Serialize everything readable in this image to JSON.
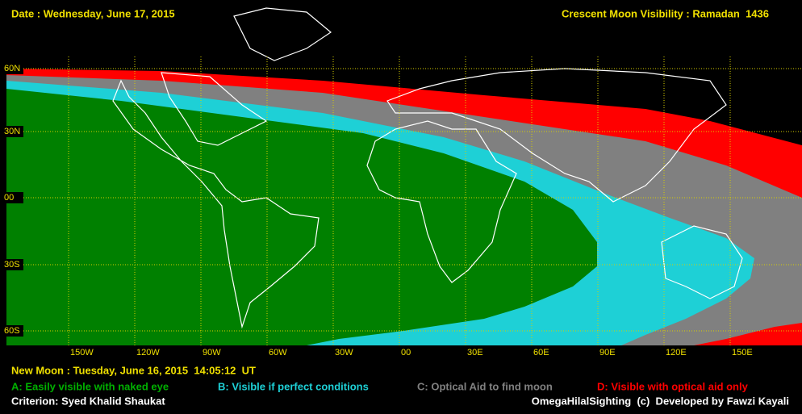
{
  "header": {
    "date": "Date : Wednesday, June 17, 2015",
    "title": "Crescent Moon Visibility : Ramadan  1436"
  },
  "grid": {
    "lat_labels": [
      "60N",
      "30N",
      "00",
      "30S",
      "60S"
    ],
    "lon_labels": [
      "150W",
      "120W",
      "90W",
      "60W",
      "30W",
      "00",
      "30E",
      "60E",
      "90E",
      "120E",
      "150E"
    ]
  },
  "new_moon": "New Moon : Tuesday, June 16, 2015  14:05:12  UT",
  "legend": [
    {
      "label": "A: Easily visible with naked eye",
      "color": "#008000"
    },
    {
      "label": "B: Visible if perfect conditions",
      "color": "#1ed0d6"
    },
    {
      "label": "C: Optical Aid to find moon",
      "color": "#808080"
    },
    {
      "label": "D: Visible with optical aid only",
      "color": "#ff0000"
    }
  ],
  "footer": {
    "criterion": "Criterion: Syed Khalid Shaukat",
    "credit": "OmegaHilalSighting  (c)  Developed by Fawzi Kayali"
  }
}
